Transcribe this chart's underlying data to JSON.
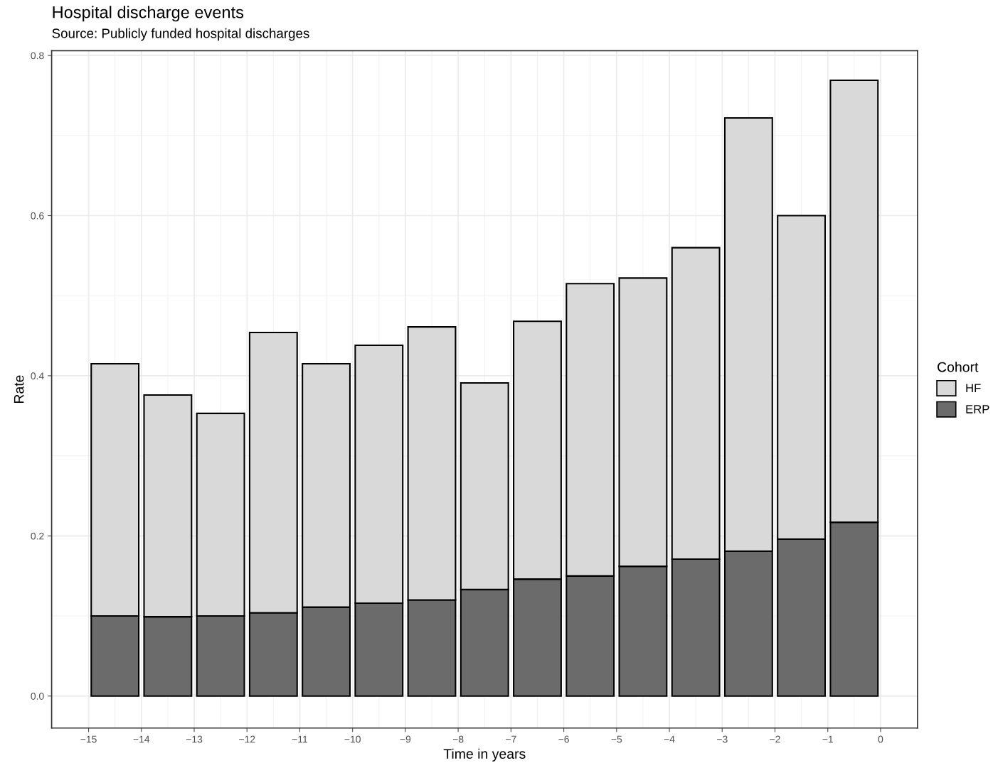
{
  "chart_data": {
    "type": "bar",
    "title": "Hospital discharge events",
    "subtitle": "Source: Publicly funded hospital discharges",
    "xlabel": "Time in years",
    "ylabel": "Rate",
    "legend_title": "Cohort",
    "legend": "right",
    "grid": true,
    "stacked": true,
    "x": [
      -14.5,
      -13.5,
      -12.5,
      -11.5,
      -10.5,
      -9.5,
      -8.5,
      -7.5,
      -6.5,
      -5.5,
      -4.5,
      -3.5,
      -2.5,
      -1.5,
      -0.5
    ],
    "series": [
      {
        "name": "ERP",
        "color": "#6b6b6b",
        "values": [
          0.1,
          0.099,
          0.1,
          0.104,
          0.111,
          0.116,
          0.12,
          0.133,
          0.146,
          0.15,
          0.162,
          0.171,
          0.181,
          0.196,
          0.217
        ]
      },
      {
        "name": "HF",
        "color": "#d9d9d9",
        "values": [
          0.315,
          0.277,
          0.253,
          0.35,
          0.304,
          0.322,
          0.341,
          0.258,
          0.322,
          0.365,
          0.36,
          0.389,
          0.541,
          0.404,
          0.552
        ]
      }
    ],
    "xlim": [
      -15.7,
      0.7
    ],
    "ylim": [
      -0.04,
      0.806
    ],
    "xticks": [
      {
        "value": -15,
        "label": "−15"
      },
      {
        "value": -14,
        "label": "−14"
      },
      {
        "value": -13,
        "label": "−13"
      },
      {
        "value": -12,
        "label": "−12"
      },
      {
        "value": -11,
        "label": "−11"
      },
      {
        "value": -10,
        "label": "−10"
      },
      {
        "value": -9,
        "label": "−9"
      },
      {
        "value": -8,
        "label": "−8"
      },
      {
        "value": -7,
        "label": "−7"
      },
      {
        "value": -6,
        "label": "−6"
      },
      {
        "value": -5,
        "label": "−5"
      },
      {
        "value": -4,
        "label": "−4"
      },
      {
        "value": -3,
        "label": "−3"
      },
      {
        "value": -2,
        "label": "−2"
      },
      {
        "value": -1,
        "label": "−1"
      },
      0
    ],
    "yticks": [
      {
        "value": 0,
        "label": "0.0"
      },
      0.2,
      0.4,
      0.6,
      0.8
    ]
  }
}
